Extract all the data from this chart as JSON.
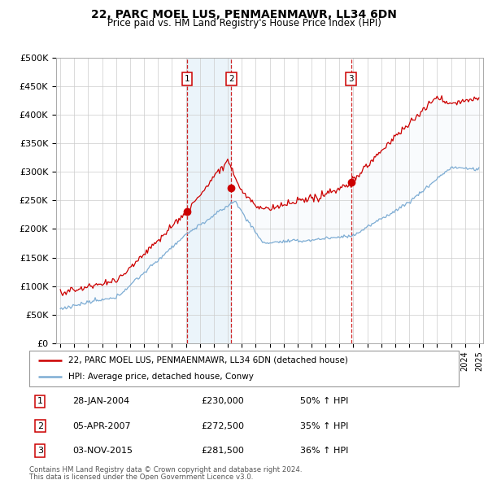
{
  "title": "22, PARC MOEL LUS, PENMAENMAWR, LL34 6DN",
  "subtitle": "Price paid vs. HM Land Registry's House Price Index (HPI)",
  "ylim": [
    0,
    500000
  ],
  "yticks": [
    0,
    50000,
    100000,
    150000,
    200000,
    250000,
    300000,
    350000,
    400000,
    450000,
    500000
  ],
  "ytick_labels": [
    "£0",
    "£50K",
    "£100K",
    "£150K",
    "£200K",
    "£250K",
    "£300K",
    "£350K",
    "£400K",
    "£450K",
    "£500K"
  ],
  "sale_dates": [
    2004.08,
    2007.26,
    2015.84
  ],
  "sale_prices": [
    230000,
    272500,
    281500
  ],
  "sale_labels": [
    "1",
    "2",
    "3"
  ],
  "sale_date_str": [
    "28-JAN-2004",
    "05-APR-2007",
    "03-NOV-2015"
  ],
  "sale_price_str": [
    "£230,000",
    "£272,500",
    "£281,500"
  ],
  "sale_hpi_str": [
    "50% ↑ HPI",
    "35% ↑ HPI",
    "36% ↑ HPI"
  ],
  "red_line_color": "#cc0000",
  "blue_line_color": "#7eadd4",
  "shade_color": "#d8eaf7",
  "grid_color": "#cccccc",
  "legend_line1": "22, PARC MOEL LUS, PENMAENMAWR, LL34 6DN (detached house)",
  "legend_line2": "HPI: Average price, detached house, Conwy",
  "footer1": "Contains HM Land Registry data © Crown copyright and database right 2024.",
  "footer2": "This data is licensed under the Open Government Licence v3.0."
}
